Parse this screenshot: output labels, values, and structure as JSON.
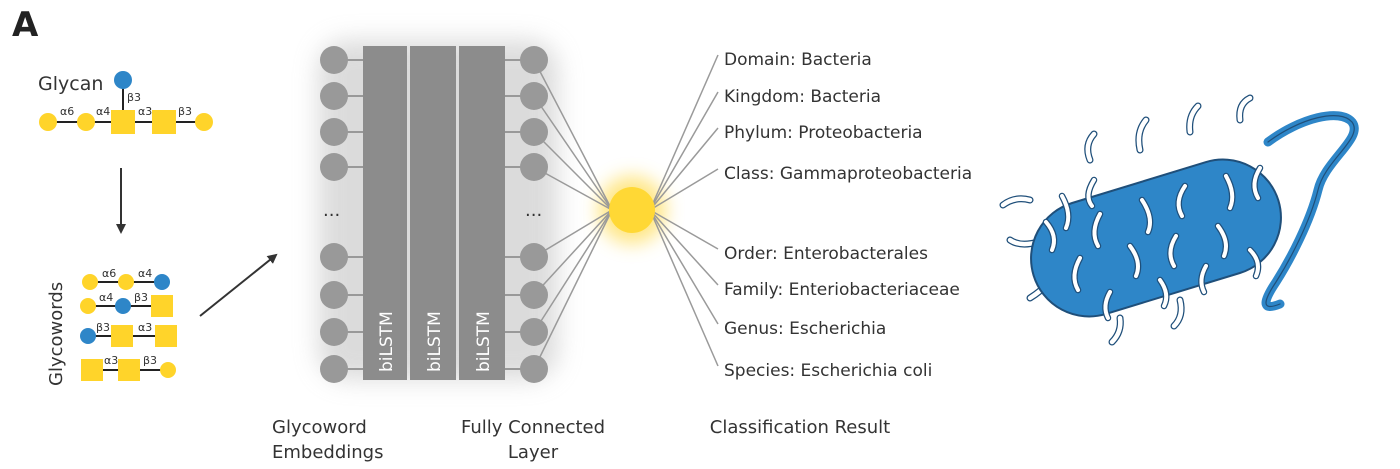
{
  "panel_label": "A",
  "glycan": {
    "title": "Glycan",
    "linkages": [
      "α6",
      "α4",
      "α3",
      "β3",
      "β3"
    ]
  },
  "glycowords": {
    "title": "Glycowords",
    "rows": [
      [
        "α6",
        "α4"
      ],
      [
        "α4",
        "β3"
      ],
      [
        "β3",
        "α3"
      ],
      [
        "α3",
        "β3"
      ]
    ]
  },
  "network": {
    "ellipsis": "...",
    "bilstm_labels": [
      "biLSTM",
      "biLSTM",
      "biLSTM"
    ],
    "label_embeddings": [
      "Glycoword",
      "Embeddings"
    ],
    "label_fc": [
      "Fully Connected",
      "Layer"
    ],
    "label_result": "Classification Result"
  },
  "classification": [
    "Domain: Bacteria",
    "Kingdom: Bacteria",
    "Phylum: Proteobacteria",
    "Class: Gammaproteobacteria",
    "Order: Enterobacterales",
    "Family: Enteriobacteriaceae",
    "Genus: Escherichia",
    "Species: Escherichia coli"
  ],
  "colors": {
    "galactose_yellow": "#FFD42A",
    "glucose_blue": "#2E86C8",
    "node_gray": "#999999",
    "bilstm_gray": "#8C8C8C",
    "output_node": "#FFD835",
    "bacterium_blue": "#2E86C8"
  }
}
